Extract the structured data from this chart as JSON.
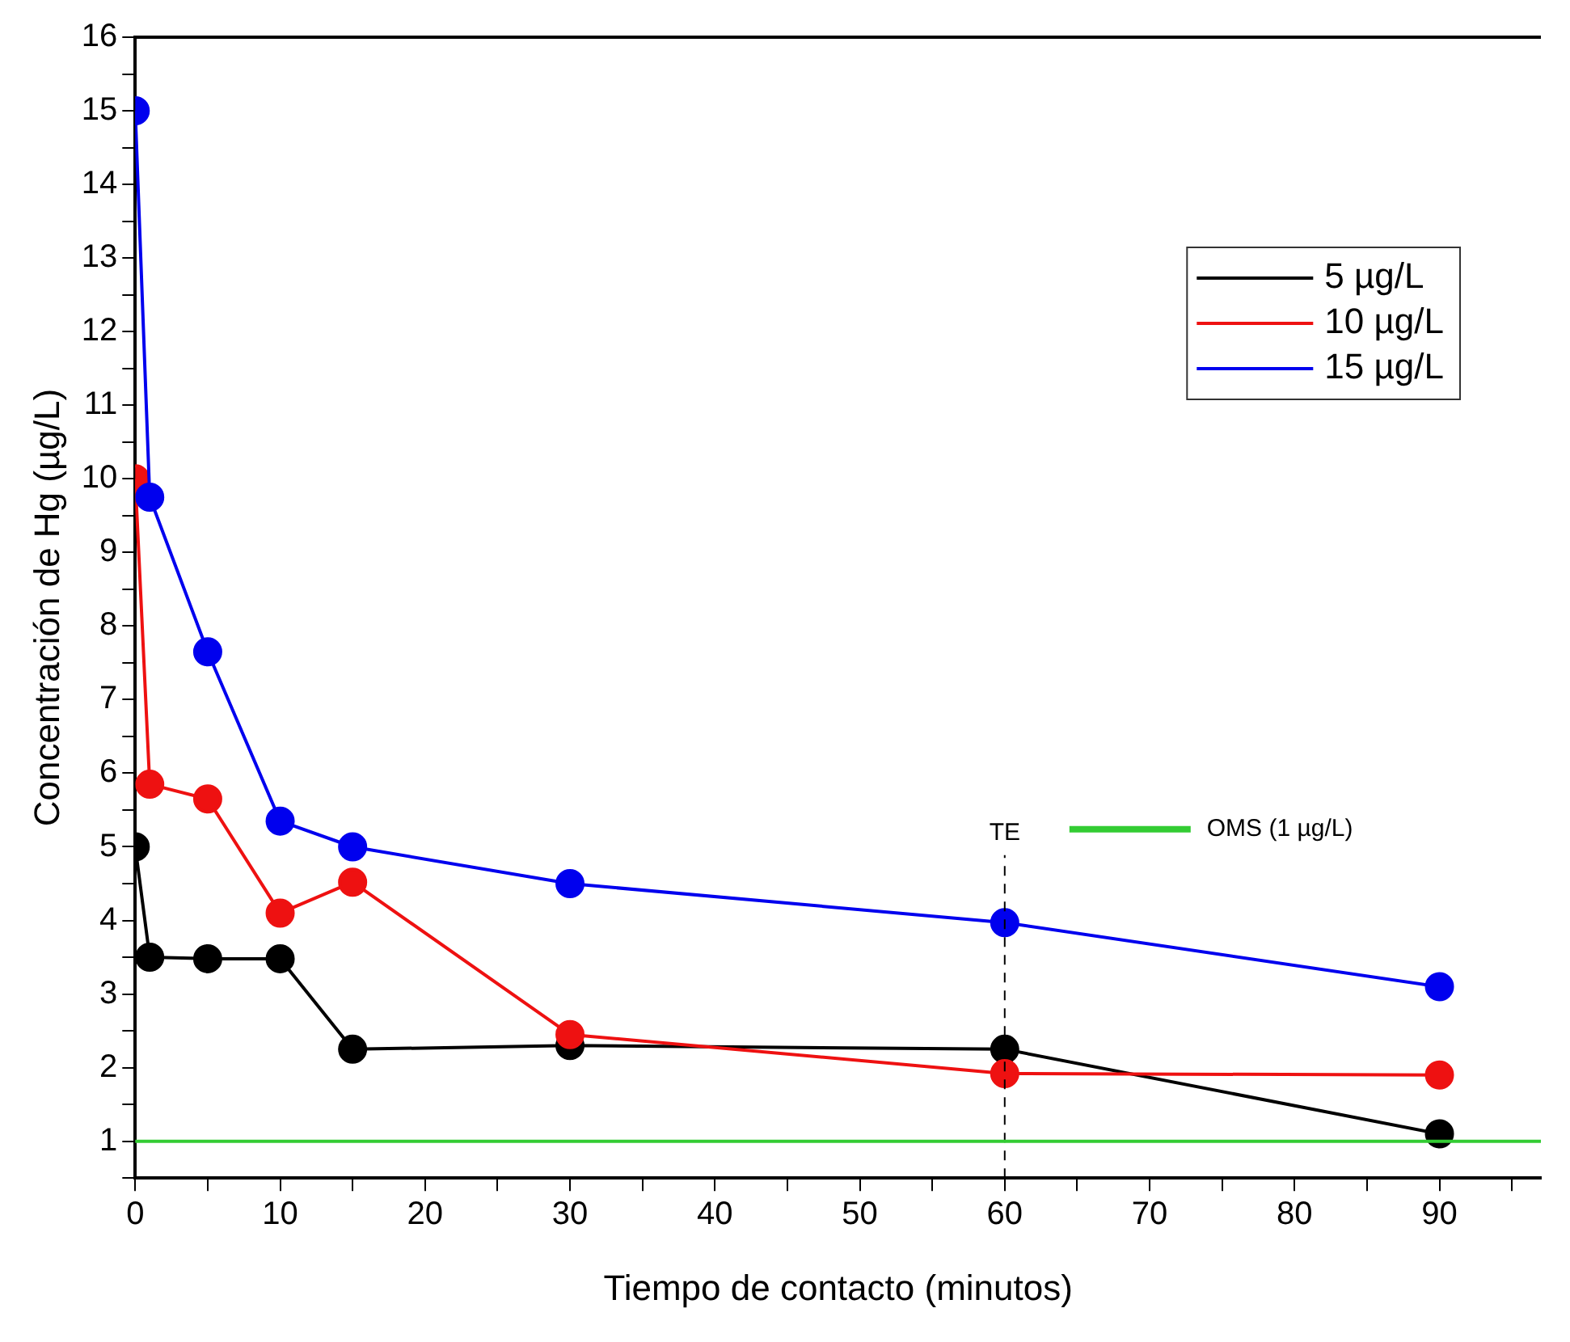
{
  "chart_data": {
    "type": "line",
    "xlabel": "Tiempo de contacto (minutos)",
    "ylabel": "Concentración de Hg (µg/L)",
    "x": [
      0,
      1,
      5,
      10,
      15,
      30,
      60,
      90
    ],
    "series": [
      {
        "name": "5 µg/L",
        "color": "#000000",
        "values": [
          5,
          3.5,
          3.48,
          3.48,
          2.25,
          2.3,
          2.25,
          1.1
        ]
      },
      {
        "name": "10 µg/L",
        "color": "#ee1111",
        "values": [
          10,
          5.85,
          5.65,
          4.1,
          4.52,
          2.45,
          1.92,
          1.9
        ]
      },
      {
        "name": "15 µg/L",
        "color": "#0000ee",
        "values": [
          15,
          9.75,
          7.65,
          5.35,
          5,
          4.5,
          3.97,
          3.1
        ]
      }
    ],
    "xlim": [
      0,
      97
    ],
    "xticks": [
      0,
      {
        "value": 5,
        "label": null
      },
      10,
      {
        "value": 15,
        "label": null
      },
      20,
      {
        "value": 25,
        "label": null
      },
      30,
      {
        "value": 35,
        "label": null
      },
      40,
      {
        "value": 45,
        "label": null
      },
      50,
      {
        "value": 55,
        "label": null
      },
      60,
      {
        "value": 65,
        "label": null
      },
      70,
      {
        "value": 75,
        "label": null
      },
      80,
      {
        "value": 85,
        "label": null
      },
      90,
      {
        "value": 95,
        "label": null
      }
    ],
    "ylim": [
      0.5,
      16
    ],
    "yticks": [
      {
        "value": 0.5,
        "label": null
      },
      1,
      {
        "value": 1.5,
        "label": null
      },
      2,
      {
        "value": 2.5,
        "label": null
      },
      3,
      {
        "value": 3.5,
        "label": null
      },
      4,
      {
        "value": 4.5,
        "label": null
      },
      5,
      {
        "value": 5.5,
        "label": null
      },
      6,
      {
        "value": 6.5,
        "label": null
      },
      7,
      {
        "value": 7.5,
        "label": null
      },
      8,
      {
        "value": 8.5,
        "label": null
      },
      9,
      {
        "value": 9.5,
        "label": null
      },
      10,
      {
        "value": 10.5,
        "label": null
      },
      11,
      {
        "value": 11.5,
        "label": null
      },
      12,
      {
        "value": 12.5,
        "label": null
      },
      13,
      {
        "value": 13.5,
        "label": null
      },
      14,
      {
        "value": 14.5,
        "label": null
      },
      15,
      {
        "value": 15.5,
        "label": null
      },
      16
    ],
    "ref_lines": [
      {
        "axis": "x",
        "value": 60,
        "label": "TE",
        "color": "#000000",
        "line_style": "dashed"
      },
      {
        "axis": "y",
        "value": 1,
        "label": "OMS (1 µg/L)",
        "color": "#33cc33",
        "line_style": "solid"
      }
    ],
    "grid": false,
    "legend": "top right",
    "marker": "circle",
    "line_style": "solid"
  }
}
